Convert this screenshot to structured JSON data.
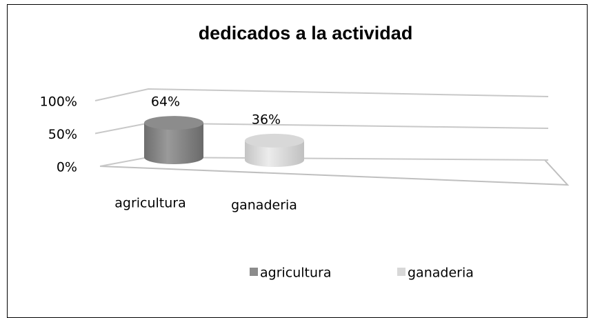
{
  "chart_data": {
    "type": "bar",
    "title": "dedicados a la actividad",
    "categories": [
      "agricultura",
      "ganaderia"
    ],
    "values": [
      64,
      36
    ],
    "value_labels": [
      "64%",
      "36%"
    ],
    "colors": [
      "#8c8c8c",
      "#d8d8d8"
    ],
    "ylim": [
      0,
      100
    ],
    "yticks": [
      {
        "value": 0,
        "label": "0%"
      },
      {
        "value": 50,
        "label": "50%"
      },
      {
        "value": 100,
        "label": "100%"
      }
    ],
    "grid": true,
    "legend": "bottom"
  }
}
